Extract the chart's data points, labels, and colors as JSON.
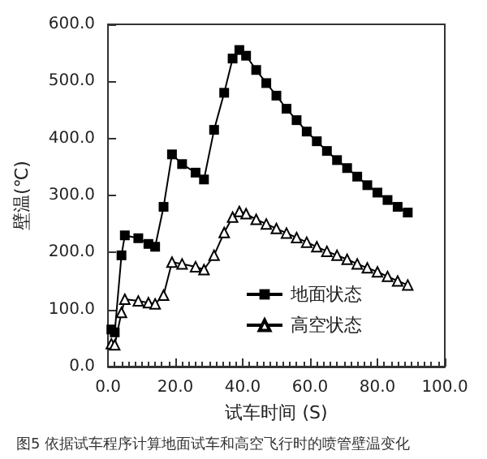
{
  "chart_data": {
    "type": "line",
    "xlabel": "试车时间 (S)",
    "ylabel": "壁温(℃)",
    "x": [
      1,
      2,
      4,
      5,
      9,
      12,
      14,
      16.5,
      19,
      22,
      26,
      28.5,
      31.5,
      34.5,
      37,
      39,
      41,
      44,
      47,
      50,
      53,
      56,
      59,
      62,
      65,
      68,
      71,
      74,
      77,
      80,
      83,
      86,
      89
    ],
    "series": [
      {
        "name": "地面状态",
        "color": "#000000",
        "marker": "square",
        "values": [
          65,
          60,
          195,
          230,
          225,
          215,
          210,
          280,
          372,
          355,
          340,
          328,
          415,
          480,
          540,
          555,
          545,
          520,
          497,
          475,
          452,
          432,
          412,
          395,
          378,
          362,
          348,
          333,
          318,
          305,
          292,
          280,
          270
        ]
      },
      {
        "name": "高空状态",
        "color": "#000000",
        "marker": "triangle",
        "values": [
          40,
          38,
          95,
          118,
          115,
          112,
          110,
          125,
          183,
          180,
          175,
          170,
          195,
          235,
          262,
          272,
          268,
          258,
          250,
          242,
          234,
          226,
          218,
          210,
          202,
          195,
          188,
          180,
          173,
          166,
          158,
          150,
          143
        ]
      }
    ],
    "xlim": [
      0,
      100
    ],
    "xticks": [
      {
        "value": 0,
        "label": "0.0"
      },
      {
        "value": 20,
        "label": "20.0"
      },
      {
        "value": 40,
        "label": "40.0"
      },
      {
        "value": 60,
        "label": "60.0"
      },
      {
        "value": 80,
        "label": "80.0"
      },
      {
        "value": 100,
        "label": "100.0"
      }
    ],
    "ylim": [
      0,
      600
    ],
    "yticks": [
      {
        "value": 0,
        "label": "0.0"
      },
      {
        "value": 100,
        "label": "100.0"
      },
      {
        "value": 200,
        "label": "200.0"
      },
      {
        "value": 300,
        "label": "300.0"
      },
      {
        "value": 400,
        "label": "400.0"
      },
      {
        "value": 500,
        "label": "500.0"
      },
      {
        "value": 600,
        "label": "600.0"
      }
    ],
    "legend": "bottom right",
    "grid": false,
    "annotations": [
      "图5 依据试车程序计算地面试车和高空飞行时的喷管壁温变化"
    ]
  }
}
